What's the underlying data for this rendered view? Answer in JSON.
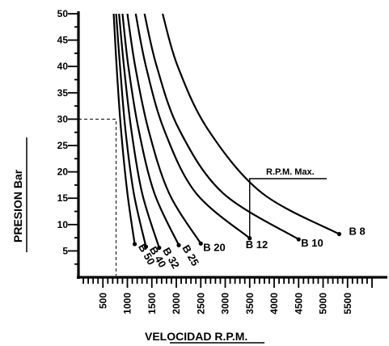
{
  "chart_data": {
    "type": "line",
    "title": "",
    "xlabel": "VELOCIDAD R.P.M.",
    "ylabel": "PRESION Bar",
    "xlim": [
      0,
      6000
    ],
    "ylim": [
      0,
      50
    ],
    "x_ticks": [
      "500",
      "1000",
      "1500",
      "2000",
      "2500",
      "3000",
      "3500",
      "4000",
      "4500",
      "5000",
      "5500"
    ],
    "y_ticks": [
      "5",
      "10",
      "15",
      "20",
      "25",
      "30",
      "35",
      "40",
      "45",
      "50"
    ],
    "grid": false,
    "annotation": {
      "text": "R.P.M. Max.",
      "x": 3500
    },
    "reference_point": {
      "x": 770,
      "y": 30
    },
    "series": [
      {
        "name": "B 50",
        "x": [
          720,
          780,
          870,
          1000,
          1150
        ],
        "y": [
          50,
          40,
          28,
          16,
          6.3
        ]
      },
      {
        "name": "B 40",
        "x": [
          770,
          850,
          960,
          1130,
          1380
        ],
        "y": [
          50,
          40,
          28,
          16,
          5.8
        ]
      },
      {
        "name": "B 32",
        "x": [
          830,
          930,
          1080,
          1300,
          1650
        ],
        "y": [
          50,
          40,
          28,
          16,
          5.6
        ]
      },
      {
        "name": "B 25",
        "x": [
          900,
          1020,
          1230,
          1550,
          2050
        ],
        "y": [
          50,
          40,
          28,
          16,
          6.1
        ]
      },
      {
        "name": "B 20",
        "x": [
          1000,
          1160,
          1430,
          1850,
          2500
        ],
        "y": [
          50,
          40,
          28,
          16,
          6.4
        ]
      },
      {
        "name": "B 12",
        "x": [
          1170,
          1380,
          1750,
          2400,
          3500
        ],
        "y": [
          50,
          40,
          28,
          16,
          7.4
        ]
      },
      {
        "name": "B 10",
        "x": [
          1350,
          1600,
          2060,
          2950,
          4500
        ],
        "y": [
          50,
          40,
          28,
          16,
          7.2
        ]
      },
      {
        "name": "B 8",
        "x": [
          1720,
          2030,
          2650,
          3750,
          5330
        ],
        "y": [
          50,
          40,
          28,
          16,
          8.2
        ]
      }
    ]
  }
}
